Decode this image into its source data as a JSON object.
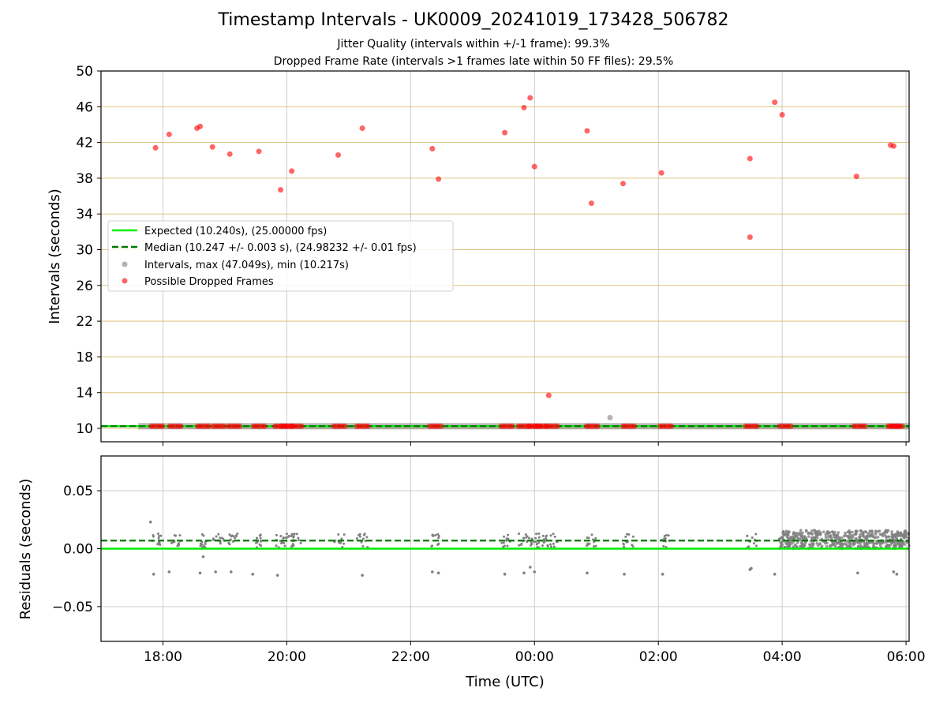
{
  "title": "Timestamp Intervals - UK0009_20241019_173428_506782",
  "subtitle_line1": "Jitter Quality (intervals within +/-1 frame): 99.3%",
  "subtitle_line2": "Dropped Frame Rate (intervals >1 frames late within 50 FF files): 29.5%",
  "colors": {
    "expected": "#00ee00",
    "median": "#007700",
    "intervals": "#808080",
    "dropped": "#ff0000",
    "hgrid_top": "#d4b45a",
    "grid": "#cccccc"
  },
  "chart_data": [
    {
      "type": "scatter",
      "ylabel": "Intervals (seconds)",
      "ylim": [
        8.5,
        50
      ],
      "yticks": [
        10,
        14,
        18,
        22,
        26,
        30,
        34,
        38,
        42,
        46,
        50
      ],
      "y_tick_labels": [
        "10",
        "14",
        "18",
        "22",
        "26",
        "30",
        "34",
        "38",
        "42",
        "46",
        "50"
      ],
      "xlim_hours_from_midnight_oct19": [
        17.0,
        30.05
      ],
      "xticks": [
        18,
        20,
        22,
        24,
        26,
        28,
        30
      ],
      "x_tick_labels": [
        "18:00",
        "20:00",
        "22:00",
        "00:00",
        "02:00",
        "04:00",
        "06:00"
      ],
      "grid": true,
      "legend_position": "center-left",
      "legend": [
        "Expected (10.240s), (25.00000 fps)",
        "Median (10.247 +/- 0.003 s), (24.98232 +/- 0.01 fps)",
        "Intervals, max (47.049s), min (10.217s)",
        "Possible Dropped Frames"
      ],
      "expected_value": 10.24,
      "median_value": 10.247,
      "data_time_range": [
        "17:36",
        "06:03"
      ],
      "series": [
        {
          "name": "Possible Dropped Frames",
          "x": [
            17.88,
            18.1,
            18.55,
            18.6,
            18.8,
            19.08,
            19.55,
            19.9,
            20.08,
            20.83,
            21.22,
            22.35,
            22.45,
            23.52,
            23.83,
            23.93,
            24.0,
            24.23,
            24.85,
            24.92,
            25.43,
            26.05,
            27.48,
            27.48,
            27.88,
            28.0,
            29.2,
            29.75,
            29.8
          ],
          "y": [
            41.4,
            42.9,
            43.6,
            43.8,
            41.5,
            40.7,
            41.0,
            36.7,
            38.8,
            40.6,
            43.6,
            41.3,
            37.9,
            43.1,
            45.9,
            47.0,
            39.3,
            13.7,
            43.3,
            35.2,
            37.4,
            38.6,
            40.2,
            31.4,
            46.5,
            45.1,
            38.2,
            41.7,
            41.6
          ]
        },
        {
          "name": "Dropped-frame clusters at ~10.24 s",
          "x": [
            17.9,
            18.2,
            18.65,
            18.9,
            19.15,
            19.55,
            19.9,
            20.15,
            20.85,
            21.22,
            22.4,
            23.55,
            23.83,
            24.1,
            24.28,
            24.93,
            25.52,
            26.12,
            27.5,
            28.05,
            29.25,
            29.8,
            29.85,
            24.0,
            20.0
          ],
          "y": [
            10.24,
            10.24,
            10.24,
            10.24,
            10.24,
            10.24,
            10.24,
            10.24,
            10.24,
            10.24,
            10.24,
            10.24,
            10.24,
            10.24,
            10.24,
            10.24,
            10.24,
            10.24,
            10.24,
            10.24,
            10.24,
            10.24,
            10.24,
            10.24,
            10.24
          ]
        },
        {
          "name": "Interval outliers",
          "x": [
            25.22
          ],
          "y": [
            11.2
          ]
        }
      ]
    },
    {
      "type": "scatter",
      "xlabel": "Time (UTC)",
      "ylabel": "Residuals (seconds)",
      "ylim": [
        -0.08,
        0.08
      ],
      "yticks": [
        0.05,
        0.0,
        -0.05
      ],
      "y_tick_labels": [
        "0.05",
        "0.00",
        "−0.05"
      ],
      "xticks": [
        18,
        20,
        22,
        24,
        26,
        28,
        30
      ],
      "x_tick_labels": [
        "18:00",
        "20:00",
        "22:00",
        "00:00",
        "02:00",
        "04:00",
        "06:00"
      ],
      "grid": true,
      "expected_residual": 0.0,
      "median_residual": 0.007,
      "series": [
        {
          "name": "Residual outliers",
          "x": [
            17.85,
            18.1,
            18.6,
            18.85,
            19.1,
            19.45,
            19.85,
            21.22,
            22.35,
            22.45,
            23.52,
            23.83,
            23.93,
            24.0,
            24.85,
            25.45,
            26.07,
            27.48,
            27.5,
            27.88,
            29.22,
            29.8,
            29.85,
            17.8,
            18.65
          ],
          "y": [
            -0.022,
            -0.02,
            -0.021,
            -0.02,
            -0.02,
            -0.022,
            -0.023,
            -0.023,
            -0.02,
            -0.021,
            -0.022,
            -0.021,
            -0.016,
            -0.02,
            -0.021,
            -0.022,
            -0.022,
            -0.018,
            -0.017,
            -0.022,
            -0.021,
            -0.02,
            -0.022,
            0.023,
            -0.007
          ]
        }
      ]
    }
  ]
}
